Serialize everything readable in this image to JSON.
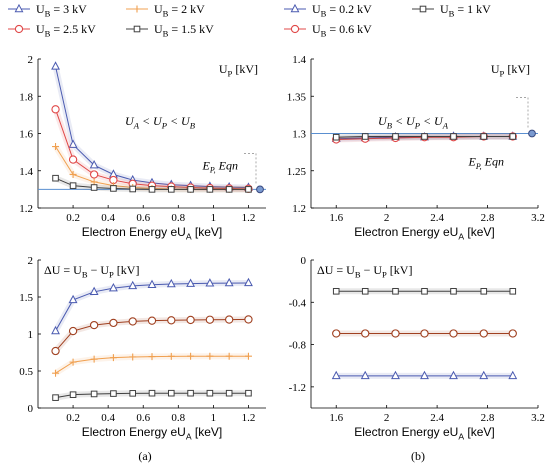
{
  "chart_data": [
    {
      "id": "a_top",
      "type": "line",
      "legend_position": "top",
      "x": [
        0.1,
        0.2,
        0.32,
        0.43,
        0.54,
        0.65,
        0.76,
        0.87,
        0.98,
        1.09,
        1.2
      ],
      "series": [
        {
          "name": "3 kV",
          "color": "#4a5ab0",
          "marker": "triangle",
          "values": [
            1.96,
            1.54,
            1.43,
            1.38,
            1.35,
            1.335,
            1.325,
            1.32,
            1.315,
            1.312,
            1.31
          ]
        },
        {
          "name": "2.5 kV",
          "color": "#e04848",
          "marker": "circle",
          "values": [
            1.73,
            1.46,
            1.38,
            1.35,
            1.33,
            1.32,
            1.315,
            1.31,
            1.307,
            1.305,
            1.303
          ]
        },
        {
          "name": "2 kV",
          "color": "#f0a050",
          "marker": "plus",
          "values": [
            1.53,
            1.38,
            1.34,
            1.32,
            1.31,
            1.305,
            1.302,
            1.3,
            1.3,
            1.3,
            1.3
          ]
        },
        {
          "name": "1.5 kV",
          "color": "#404040",
          "marker": "square",
          "values": [
            1.36,
            1.32,
            1.31,
            1.305,
            1.302,
            1.3,
            1.3,
            1.3,
            1.3,
            1.3,
            1.3
          ]
        }
      ],
      "reference_line": 1.3,
      "xlim": [
        0,
        1.3
      ],
      "ylim": [
        1.2,
        2.0
      ],
      "xticks": [
        "0.2",
        "0.4",
        "0.6",
        "0.8",
        "1",
        "1.2"
      ],
      "yticks": [
        "1.2",
        "1.4",
        "1.6",
        "1.8",
        "2"
      ],
      "xlabel": "Electron Energy eU_A [keV]",
      "ylabel": "U_P [kV]",
      "annotation": "U_A < U_P < U_B",
      "eqn_label": "E_P, Eqn"
    },
    {
      "id": "b_top",
      "type": "line",
      "legend_position": "top",
      "x": [
        1.6,
        1.83,
        2.07,
        2.3,
        2.53,
        2.77,
        3.0
      ],
      "series": [
        {
          "name": "0.2 kV",
          "color": "#4a5ab0",
          "marker": "triangle",
          "values": [
            1.293,
            1.294,
            1.295,
            1.295,
            1.296,
            1.296,
            1.296
          ]
        },
        {
          "name": "0.6 kV",
          "color": "#e04848",
          "marker": "circle",
          "values": [
            1.292,
            1.293,
            1.294,
            1.295,
            1.295,
            1.296,
            1.296
          ]
        },
        {
          "name": "1 kV",
          "color": "#404040",
          "marker": "square",
          "values": [
            1.295,
            1.296,
            1.296,
            1.296,
            1.296,
            1.296,
            1.296
          ]
        }
      ],
      "reference_line": 1.3,
      "xlim": [
        1.4,
        3.2
      ],
      "ylim": [
        1.2,
        1.4
      ],
      "xticks": [
        "1.6",
        "2",
        "2.4",
        "2.8",
        "3.2"
      ],
      "yticks": [
        "1.2",
        "1.25",
        "1.3",
        "1.35",
        "1.4"
      ],
      "xlabel": "Electron Energy eU_A [keV]",
      "ylabel": "U_P [kV]",
      "annotation": "U_B < U_P < U_A",
      "eqn_label": "E_P, Eqn"
    },
    {
      "id": "a_bottom",
      "type": "line",
      "x": [
        0.1,
        0.2,
        0.32,
        0.43,
        0.54,
        0.65,
        0.76,
        0.87,
        0.98,
        1.09,
        1.2
      ],
      "series": [
        {
          "name": "3 kV",
          "color": "#4a5ab0",
          "marker": "triangle",
          "values": [
            1.04,
            1.46,
            1.57,
            1.62,
            1.65,
            1.665,
            1.675,
            1.68,
            1.685,
            1.688,
            1.69
          ]
        },
        {
          "name": "2.5 kV",
          "color": "#a04020",
          "marker": "circle",
          "values": [
            0.77,
            1.04,
            1.12,
            1.15,
            1.17,
            1.18,
            1.185,
            1.19,
            1.193,
            1.195,
            1.197
          ]
        },
        {
          "name": "2 kV",
          "color": "#f0a050",
          "marker": "plus",
          "values": [
            0.47,
            0.62,
            0.66,
            0.68,
            0.69,
            0.695,
            0.698,
            0.7,
            0.7,
            0.7,
            0.7
          ]
        },
        {
          "name": "1.5 kV",
          "color": "#404040",
          "marker": "square",
          "values": [
            0.14,
            0.18,
            0.19,
            0.195,
            0.198,
            0.2,
            0.2,
            0.2,
            0.2,
            0.2,
            0.2
          ]
        }
      ],
      "xlim": [
        0,
        1.3
      ],
      "ylim": [
        0,
        2.0
      ],
      "xticks": [
        "0.2",
        "0.4",
        "0.6",
        "0.8",
        "1",
        "1.2"
      ],
      "yticks": [
        "0",
        "0.5",
        "1",
        "1.5",
        "2"
      ],
      "xlabel": "Electron Energy eU_A [keV]",
      "ylabel": "ΔU = U_B − U_P [kV]"
    },
    {
      "id": "b_bottom",
      "type": "line",
      "x": [
        1.6,
        1.83,
        2.07,
        2.3,
        2.53,
        2.77,
        3.0
      ],
      "series": [
        {
          "name": "0.2 kV",
          "color": "#4a5ab0",
          "marker": "triangle",
          "values": [
            -1.096,
            -1.096,
            -1.096,
            -1.096,
            -1.096,
            -1.096,
            -1.096
          ]
        },
        {
          "name": "0.6 kV",
          "color": "#a04020",
          "marker": "circle",
          "values": [
            -0.695,
            -0.695,
            -0.695,
            -0.695,
            -0.695,
            -0.695,
            -0.695
          ]
        },
        {
          "name": "1 kV",
          "color": "#404040",
          "marker": "square",
          "values": [
            -0.296,
            -0.296,
            -0.296,
            -0.296,
            -0.296,
            -0.296,
            -0.296
          ]
        }
      ],
      "xlim": [
        1.4,
        3.2
      ],
      "ylim": [
        -1.4,
        0
      ],
      "xticks": [
        "1.6",
        "2",
        "2.4",
        "2.8",
        "3.2"
      ],
      "yticks": [
        "0",
        "-0.4",
        "-0.8",
        "-1.2"
      ],
      "xlabel": "Electron Energy eU_A [keV]",
      "ylabel": "ΔU = U_B − U_P [kV]"
    }
  ],
  "legend_a": {
    "items": [
      {
        "label": "U_B = 3 kV",
        "color": "#4a5ab0",
        "marker": "triangle"
      },
      {
        "label": "U_B = 2 kV",
        "color": "#f0a050",
        "marker": "plus"
      },
      {
        "label": "U_B = 2.5 kV",
        "color": "#e04848",
        "marker": "circle"
      },
      {
        "label": "U_B = 1.5 kV",
        "color": "#404040",
        "marker": "square"
      }
    ]
  },
  "legend_b": {
    "items": [
      {
        "label": "U_B = 0.2 kV",
        "color": "#4a5ab0",
        "marker": "triangle"
      },
      {
        "label": "U_B = 1 kV",
        "color": "#404040",
        "marker": "square"
      },
      {
        "label": "U_B = 0.6 kV",
        "color": "#e04848",
        "marker": "circle"
      }
    ]
  },
  "panel_labels": {
    "a": "(a)",
    "b": "(b)"
  }
}
